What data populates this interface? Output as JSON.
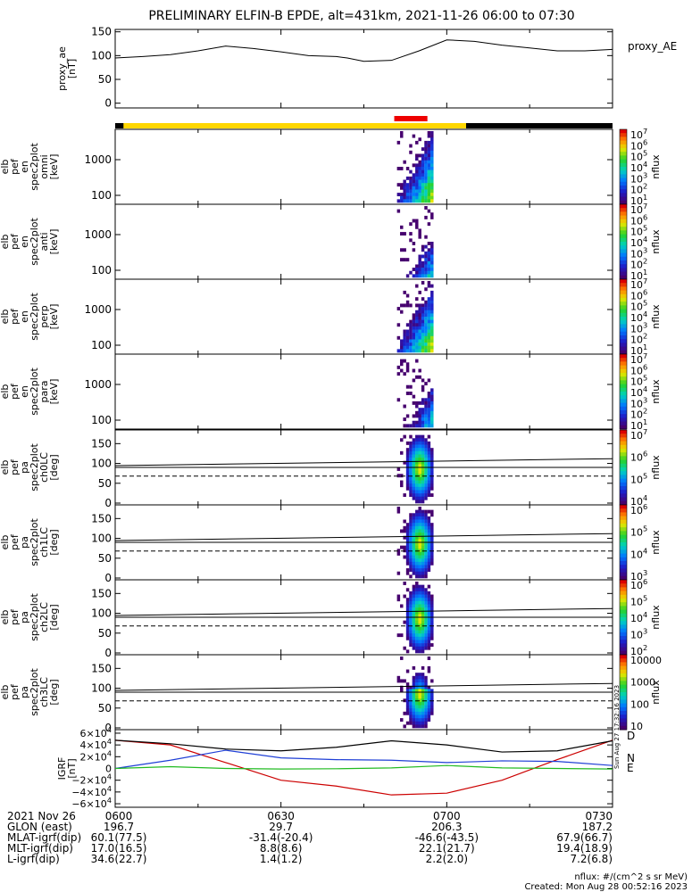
{
  "title": "PRELIMINARY ELFIN-B EPDE, alt=431km, 2021-11-26 06:00 to 07:30",
  "colors": {
    "ae": "#000000",
    "bar_yellow": "#ffd700",
    "bar_red": "#ee0000",
    "D": "#cc0000",
    "N": "#1f3fd6",
    "E": "#22bb22",
    "H": "#000000"
  },
  "chart_data": [
    {
      "type": "line",
      "name": "proxy_ae",
      "ylabel_lines": [
        "proxy_ae",
        "[nT]"
      ],
      "right_label": "proxy_AE",
      "yticks": [
        "150",
        "100",
        "50",
        "0"
      ],
      "ylim": [
        -10,
        155
      ],
      "x": [
        0,
        5,
        10,
        15,
        20,
        25,
        30,
        35,
        40,
        42,
        45,
        50,
        55,
        60,
        65,
        70,
        75,
        80,
        85,
        90
      ],
      "values": [
        95,
        98,
        102,
        110,
        120,
        115,
        108,
        100,
        98,
        95,
        88,
        90,
        110,
        133,
        130,
        122,
        116,
        110,
        110,
        113
      ]
    },
    {
      "type": "heatmap",
      "name": "omni",
      "ylabel_lines": [
        "elb",
        "pef",
        "en",
        "spec2plot",
        "omni",
        "[keV]"
      ],
      "yticks": [
        "1000",
        "100"
      ],
      "colorbar": "flux",
      "cbar_labels": [
        "10^7",
        "10^6",
        "10^5",
        "10^4",
        "10^3",
        "10^2",
        "10^1"
      ],
      "zunit": "nflux"
    },
    {
      "type": "heatmap",
      "name": "anti",
      "ylabel_lines": [
        "elb",
        "pef",
        "en",
        "spec2plot",
        "anti",
        "[keV]"
      ],
      "yticks": [
        "1000",
        "100"
      ],
      "colorbar": "flux",
      "cbar_labels": [
        "10^7",
        "10^6",
        "10^5",
        "10^4",
        "10^3",
        "10^2",
        "10^1"
      ],
      "zunit": "nflux"
    },
    {
      "type": "heatmap",
      "name": "perp",
      "ylabel_lines": [
        "elb",
        "pef",
        "en",
        "spec2plot",
        "perp",
        "[keV]"
      ],
      "yticks": [
        "1000",
        "100"
      ],
      "colorbar": "flux",
      "cbar_labels": [
        "10^7",
        "10^6",
        "10^5",
        "10^4",
        "10^3",
        "10^2",
        "10^1"
      ],
      "zunit": "nflux"
    },
    {
      "type": "heatmap",
      "name": "para",
      "ylabel_lines": [
        "elb",
        "pef",
        "en",
        "spec2plot",
        "para",
        "[keV]"
      ],
      "yticks": [
        "1000",
        "100"
      ],
      "colorbar": "flux",
      "cbar_labels": [
        "10^7",
        "10^6",
        "10^5",
        "10^4",
        "10^3",
        "10^2",
        "10^1"
      ],
      "zunit": "nflux"
    },
    {
      "type": "heatmap",
      "name": "ch0LC",
      "ylabel_lines": [
        "elb",
        "pef",
        "pa",
        "spec2plot",
        "ch0LC",
        "[deg]"
      ],
      "yticks": [
        "150",
        "100",
        "50",
        "0"
      ],
      "colorbar": "flux",
      "cbar_labels": [
        "10^7",
        "10^6",
        "10^5",
        "10^4"
      ],
      "zunit": "nflux"
    },
    {
      "type": "heatmap",
      "name": "ch1LC",
      "ylabel_lines": [
        "elb",
        "pef",
        "pa",
        "spec2plot",
        "ch1LC",
        "[deg]"
      ],
      "yticks": [
        "150",
        "100",
        "50",
        "0"
      ],
      "colorbar": "flux",
      "cbar_labels": [
        "10^6",
        "10^5",
        "10^4",
        "10^3"
      ],
      "zunit": "nflux"
    },
    {
      "type": "heatmap",
      "name": "ch2LC",
      "ylabel_lines": [
        "elb",
        "pef",
        "pa",
        "spec2plot",
        "ch2LC",
        "[deg]"
      ],
      "yticks": [
        "150",
        "100",
        "50",
        "0"
      ],
      "colorbar": "flux",
      "cbar_labels": [
        "10^6",
        "10^5",
        "10^4",
        "10^3",
        "10^2"
      ],
      "zunit": "nflux"
    },
    {
      "type": "heatmap",
      "name": "ch3LC",
      "ylabel_lines": [
        "elb",
        "pef",
        "pa",
        "spec2plot",
        "ch3LC",
        "[deg]"
      ],
      "yticks": [
        "150",
        "100",
        "50",
        "0"
      ],
      "colorbar": "flux",
      "cbar_labels": [
        "10000",
        "1000",
        "100",
        "10"
      ],
      "zunit": "nflux"
    },
    {
      "type": "line",
      "name": "IGRF",
      "ylabel_lines": [
        "IGRF",
        "[nT]"
      ],
      "yticks": [
        "6×10^4",
        "4×10^4",
        "2×10^4",
        "0",
        "−2×10^4",
        "−4×10^4",
        "−6×10^4"
      ],
      "ylim": [
        -66000,
        66000
      ],
      "x": [
        0,
        10,
        20,
        30,
        40,
        50,
        60,
        70,
        80,
        90
      ],
      "series": [
        {
          "name": "D",
          "color": "#cc0000",
          "values": [
            48000,
            40000,
            10000,
            -20000,
            -30000,
            -45000,
            -42000,
            -20000,
            15000,
            48000
          ]
        },
        {
          "name": "N",
          "color": "#1f3fd6",
          "values": [
            0,
            14000,
            31000,
            18000,
            15000,
            14000,
            10000,
            13000,
            12000,
            5000
          ]
        },
        {
          "name": "E",
          "color": "#22bb22",
          "values": [
            0,
            3000,
            0,
            -1000,
            -500,
            1000,
            5000,
            1000,
            0,
            -1000
          ]
        },
        {
          "name": "H",
          "color": "#000000",
          "values": [
            48000,
            42000,
            33000,
            30000,
            36000,
            47000,
            40000,
            28000,
            30000,
            47000
          ]
        }
      ],
      "legend": [
        "D",
        "N",
        "E"
      ]
    }
  ],
  "xaxis": {
    "ticks": [
      "0600",
      "0630",
      "0700",
      "0730"
    ],
    "rows": [
      {
        "label": "2021 Nov 26",
        "values": [
          "0600",
          "0630",
          "0700",
          "0730"
        ]
      },
      {
        "label": "GLON (east)",
        "values": [
          "196.7",
          "29.7",
          "206.3",
          "187.2"
        ]
      },
      {
        "label": "MLAT-igrf(dip)",
        "values": [
          "60.1(77.5)",
          "-31.4(-20.4)",
          "-46.6(-43.5)",
          "67.9(66.7)"
        ]
      },
      {
        "label": "MLT-igrf(dip)",
        "values": [
          "17.0(16.5)",
          "8.8(8.6)",
          "22.1(21.7)",
          "19.4(18.9)"
        ]
      },
      {
        "label": "L-igrf(dip)",
        "values": [
          "34.6(22.7)",
          "1.4(1.2)",
          "2.2(2.0)",
          "7.2(6.8)"
        ]
      }
    ]
  },
  "footer": {
    "units": "nflux: #/(cm^2 s sr MeV)",
    "created": "Created: Mon Aug 28 00:52:16 2023",
    "stamp": "Sun Aug 27 17:32:16 2023"
  }
}
